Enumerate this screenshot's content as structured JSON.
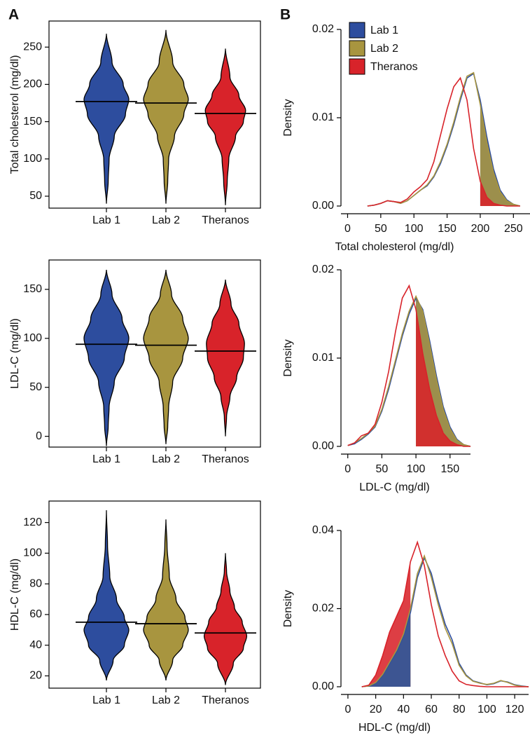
{
  "panel_labels": {
    "a": "A",
    "b": "B"
  },
  "chart_data": [
    {
      "type": "violin",
      "ylabel": "Total cholesterol (mg/dl)",
      "categories": [
        "Lab 1",
        "Lab 2",
        "Theranos"
      ],
      "colors": [
        "#2d4d9e",
        "#a8953f",
        "#d8232a"
      ],
      "values": [
        177,
        175,
        161
      ],
      "shapes": [
        {
          "y": [
            40,
            70,
            100,
            130,
            160,
            180,
            200,
            230,
            268
          ],
          "w": [
            0,
            0.08,
            0.12,
            0.35,
            0.85,
            1,
            0.75,
            0.25,
            0
          ]
        },
        {
          "y": [
            40,
            70,
            100,
            130,
            160,
            180,
            200,
            230,
            273
          ],
          "w": [
            0,
            0.08,
            0.12,
            0.38,
            0.8,
            1,
            0.8,
            0.3,
            0
          ]
        },
        {
          "y": [
            38,
            70,
            100,
            130,
            150,
            165,
            185,
            210,
            248
          ],
          "w": [
            0,
            0.08,
            0.15,
            0.45,
            0.8,
            0.9,
            0.6,
            0.2,
            0
          ]
        }
      ],
      "ylim": [
        34,
        285
      ],
      "yticks": [
        50,
        100,
        150,
        200,
        250
      ]
    },
    {
      "type": "violin",
      "ylabel": "LDL-C (mg/dl)",
      "categories": [
        "Lab 1",
        "Lab 2",
        "Theranos"
      ],
      "colors": [
        "#2d4d9e",
        "#a8953f",
        "#d8232a"
      ],
      "values": [
        94,
        93,
        87
      ],
      "shapes": [
        {
          "y": [
            -10,
            10,
            30,
            55,
            80,
            100,
            120,
            145,
            170
          ],
          "w": [
            0,
            0.08,
            0.12,
            0.35,
            0.8,
            1,
            0.7,
            0.25,
            0
          ]
        },
        {
          "y": [
            -8,
            10,
            30,
            55,
            80,
            100,
            120,
            145,
            170
          ],
          "w": [
            0,
            0.08,
            0.12,
            0.3,
            0.75,
            1,
            0.75,
            0.25,
            0
          ]
        },
        {
          "y": [
            0,
            20,
            40,
            60,
            80,
            95,
            115,
            135,
            160
          ],
          "w": [
            0,
            0.05,
            0.2,
            0.5,
            0.8,
            0.85,
            0.6,
            0.25,
            0
          ]
        }
      ],
      "ylim": [
        -11,
        180
      ],
      "yticks": [
        0,
        50,
        100,
        150
      ]
    },
    {
      "type": "violin",
      "ylabel": "HDL-C (mg/dl)",
      "categories": [
        "Lab 1",
        "Lab 2",
        "Theranos"
      ],
      "colors": [
        "#2d4d9e",
        "#a8953f",
        "#d8232a"
      ],
      "values": [
        55,
        54,
        48
      ],
      "shapes": [
        {
          "y": [
            17,
            30,
            40,
            50,
            58,
            70,
            85,
            105,
            128
          ],
          "w": [
            0,
            0.3,
            0.8,
            1,
            0.8,
            0.45,
            0.15,
            0.05,
            0
          ]
        },
        {
          "y": [
            17,
            30,
            40,
            50,
            58,
            70,
            85,
            105,
            122
          ],
          "w": [
            0,
            0.3,
            0.75,
            1,
            0.85,
            0.45,
            0.15,
            0.05,
            0
          ]
        },
        {
          "y": [
            14,
            28,
            38,
            46,
            55,
            65,
            75,
            88,
            100
          ],
          "w": [
            0,
            0.35,
            0.8,
            0.95,
            0.75,
            0.4,
            0.2,
            0.05,
            0
          ]
        }
      ],
      "ylim": [
        12,
        134
      ],
      "yticks": [
        20,
        40,
        60,
        80,
        100,
        120
      ]
    },
    {
      "type": "density",
      "xlabel": "Total cholesterol (mg/dl)",
      "ylabel": "Density",
      "legend": "top-left",
      "threshold": 200,
      "shade": "above",
      "x": [
        30,
        40,
        50,
        60,
        70,
        80,
        90,
        100,
        110,
        120,
        130,
        140,
        150,
        160,
        170,
        180,
        190,
        200,
        210,
        220,
        230,
        240,
        250,
        260
      ],
      "series": [
        {
          "name": "Lab 1",
          "color": "#2d4d9e",
          "values": [
            0,
            0.0001,
            0.0003,
            0.0006,
            0.0005,
            0.0003,
            0.0006,
            0.0012,
            0.0018,
            0.0023,
            0.0033,
            0.0048,
            0.0068,
            0.0092,
            0.012,
            0.0145,
            0.015,
            0.012,
            0.0078,
            0.0042,
            0.0018,
            0.0007,
            0.0002,
            0
          ]
        },
        {
          "name": "Lab 2",
          "color": "#a8953f",
          "values": [
            0,
            0.0001,
            0.0003,
            0.0006,
            0.0005,
            0.0003,
            0.0006,
            0.0012,
            0.0018,
            0.0024,
            0.0034,
            0.005,
            0.007,
            0.0095,
            0.0123,
            0.0147,
            0.0151,
            0.0115,
            0.0072,
            0.0038,
            0.0016,
            0.0006,
            0.0002,
            0
          ]
        },
        {
          "name": "Theranos",
          "color": "#d8232a",
          "values": [
            0,
            0.0001,
            0.0003,
            0.0006,
            0.0005,
            0.0004,
            0.0008,
            0.0016,
            0.0022,
            0.003,
            0.005,
            0.008,
            0.011,
            0.0135,
            0.0145,
            0.012,
            0.0065,
            0.0028,
            0.001,
            0.0003,
            0.0001,
            0,
            0,
            0
          ]
        }
      ],
      "xlim": [
        -10,
        275
      ],
      "xticks": [
        0,
        50,
        100,
        150,
        200,
        250
      ],
      "ylim": [
        0,
        0.02
      ],
      "yticks": [
        {
          "value": 0,
          "label": "0.00"
        },
        0.01,
        0.02
      ]
    },
    {
      "type": "density",
      "xlabel": "LDL-C (mg/dl)",
      "ylabel": "Density",
      "threshold": 100,
      "shade": "above",
      "x": [
        0,
        10,
        20,
        30,
        40,
        50,
        60,
        70,
        80,
        90,
        100,
        110,
        120,
        130,
        140,
        150,
        160,
        170,
        180
      ],
      "series": [
        {
          "name": "Lab 1",
          "color": "#2d4d9e",
          "values": [
            0.0001,
            0.0003,
            0.0008,
            0.0014,
            0.0022,
            0.004,
            0.0065,
            0.0095,
            0.0125,
            0.015,
            0.0168,
            0.0155,
            0.012,
            0.008,
            0.0045,
            0.0022,
            0.0008,
            0.0002,
            0
          ]
        },
        {
          "name": "Lab 2",
          "color": "#a8953f",
          "values": [
            0.0001,
            0.0004,
            0.0009,
            0.0015,
            0.0023,
            0.0042,
            0.0068,
            0.0098,
            0.0128,
            0.0153,
            0.017,
            0.0153,
            0.0116,
            0.0076,
            0.0042,
            0.002,
            0.0007,
            0.0002,
            0
          ]
        },
        {
          "name": "Theranos",
          "color": "#d8232a",
          "values": [
            0.0001,
            0.0004,
            0.0012,
            0.0015,
            0.0025,
            0.005,
            0.0085,
            0.013,
            0.0168,
            0.0182,
            0.0155,
            0.0105,
            0.0065,
            0.0035,
            0.0015,
            0.0006,
            0.0002,
            0,
            0
          ]
        }
      ],
      "xlim": [
        -10,
        180
      ],
      "xticks": [
        0,
        50,
        100,
        150
      ],
      "ylim": [
        0,
        0.02
      ],
      "yticks": [
        {
          "value": 0,
          "label": "0.00"
        },
        0.01,
        0.02
      ]
    },
    {
      "type": "density",
      "xlabel": "HDL-C (mg/dl)",
      "ylabel": "Density",
      "threshold": 45,
      "shade": "below",
      "x": [
        10,
        15,
        20,
        25,
        30,
        35,
        40,
        45,
        50,
        55,
        60,
        65,
        70,
        75,
        80,
        85,
        90,
        95,
        100,
        105,
        110,
        115,
        120,
        125,
        130
      ],
      "series": [
        {
          "name": "Lab 1",
          "color": "#2d4d9e",
          "values": [
            0,
            0.0002,
            0.001,
            0.003,
            0.006,
            0.009,
            0.013,
            0.019,
            0.028,
            0.033,
            0.029,
            0.022,
            0.016,
            0.012,
            0.006,
            0.003,
            0.0015,
            0.001,
            0.0005,
            0.0008,
            0.0015,
            0.0012,
            0.0005,
            0.0002,
            0
          ]
        },
        {
          "name": "Lab 2",
          "color": "#a8953f",
          "values": [
            0,
            0.0002,
            0.0011,
            0.0032,
            0.0063,
            0.0094,
            0.0135,
            0.02,
            0.029,
            0.0335,
            0.028,
            0.021,
            0.015,
            0.011,
            0.0055,
            0.0028,
            0.0014,
            0.0009,
            0.0006,
            0.0009,
            0.0016,
            0.0011,
            0.0004,
            0.0001,
            0
          ]
        },
        {
          "name": "Theranos",
          "color": "#d8232a",
          "values": [
            0,
            0.0004,
            0.003,
            0.008,
            0.014,
            0.018,
            0.022,
            0.032,
            0.037,
            0.031,
            0.021,
            0.013,
            0.008,
            0.004,
            0.0015,
            0.0006,
            0.0003,
            0.0001,
            0,
            0,
            0,
            0,
            0,
            0,
            0
          ]
        }
      ],
      "xlim": [
        -5,
        130
      ],
      "xticks": [
        0,
        20,
        40,
        60,
        80,
        100,
        120
      ],
      "ylim": [
        0,
        0.04
      ],
      "yticks": [
        {
          "value": 0,
          "label": "0.00"
        },
        0.02,
        0.04
      ]
    }
  ]
}
